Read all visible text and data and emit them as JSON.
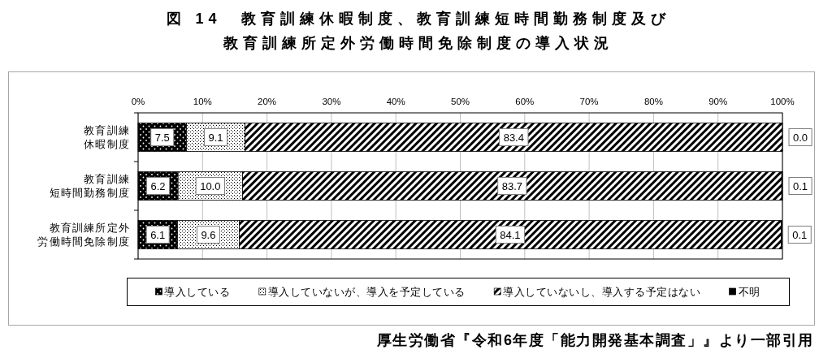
{
  "chart_data": {
    "type": "bar",
    "orientation": "horizontal",
    "stacked": true,
    "title": "図 14　教育訓練休暇制度、教育訓練短時間勤務制度及び教育訓練所定外労働時間免除制度の導入状況",
    "categories": [
      "教育訓練休暇制度",
      "教育訓練短時間勤務制度",
      "教育訓練所定外労働時間免除制度"
    ],
    "series": [
      {
        "name": "導入している",
        "color": "#000000",
        "values": [
          7.5,
          6.2,
          6.1
        ],
        "value_labels": [
          "7.5",
          "6.2",
          "6.1"
        ]
      },
      {
        "name": "導入していないが、導入を予定している",
        "color": "#000000",
        "values": [
          9.1,
          10.0,
          9.6
        ],
        "value_labels": [
          "9.1",
          "10.0",
          "9.6"
        ]
      },
      {
        "name": "導入していないし、導入する予定はない",
        "color": "#000000",
        "values": [
          83.4,
          83.7,
          84.1
        ],
        "value_labels": [
          "83.4",
          "83.7",
          "84.1"
        ]
      },
      {
        "name": "不明",
        "color": "#000000",
        "values": [
          0.0,
          0.1,
          0.1
        ],
        "value_labels": [
          "0.0",
          "0.1",
          "0.1"
        ]
      }
    ],
    "xlim": [
      0,
      100
    ],
    "xticks": [
      {
        "value": 0,
        "label": "0%"
      },
      {
        "value": 10,
        "label": "10%"
      },
      {
        "value": 20,
        "label": "20%"
      },
      {
        "value": 30,
        "label": "30%"
      },
      {
        "value": 40,
        "label": "40%"
      },
      {
        "value": 50,
        "label": "50%"
      },
      {
        "value": 60,
        "label": "60%"
      },
      {
        "value": 70,
        "label": "70%"
      },
      {
        "value": 80,
        "label": "80%"
      },
      {
        "value": 90,
        "label": "90%"
      },
      {
        "value": 100,
        "label": "100%"
      }
    ],
    "grid": "x",
    "legend": "bottom",
    "annotations": [
      "厚生労働省『令和6年度「能力開発基本調査」』より一部引用"
    ]
  }
}
